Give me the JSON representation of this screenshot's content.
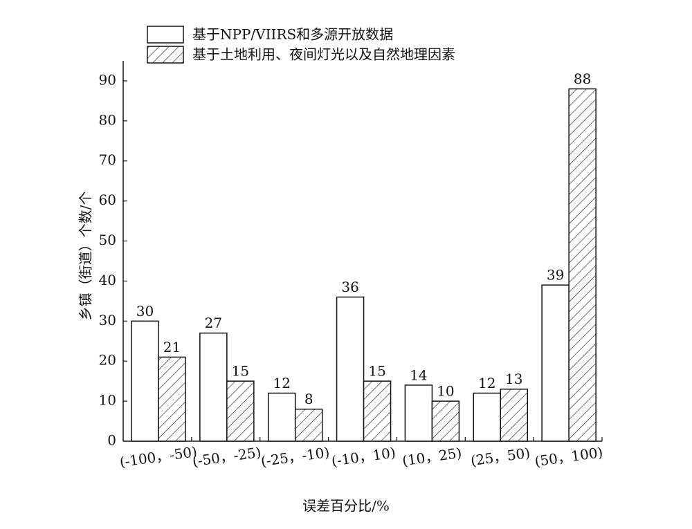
{
  "chart_data": {
    "type": "bar",
    "categories": [
      "(-100，-50)",
      "(-50，-25)",
      "(-25，-10)",
      "(-10，10)",
      "(10，25)",
      "(25，50)",
      "(50，100)"
    ],
    "series": [
      {
        "name": "基于NPP/VIIRS和多源开放数据",
        "color": "#ffffff",
        "hatch": false,
        "values": [
          30,
          27,
          12,
          36,
          14,
          12,
          39
        ]
      },
      {
        "name": "基于土地利用、夜间灯光以及自然地理因素",
        "color": "#ffffff",
        "hatch": true,
        "values": [
          21,
          15,
          8,
          15,
          10,
          13,
          88
        ]
      }
    ],
    "ylabel": "乡镇（街道）个数/个",
    "xlabel": "误差百分比/%",
    "ylim": [
      0,
      95
    ],
    "yticks": [
      0,
      10,
      20,
      30,
      40,
      50,
      60,
      70,
      80,
      90
    ],
    "legend": "top-left",
    "grid": false
  }
}
